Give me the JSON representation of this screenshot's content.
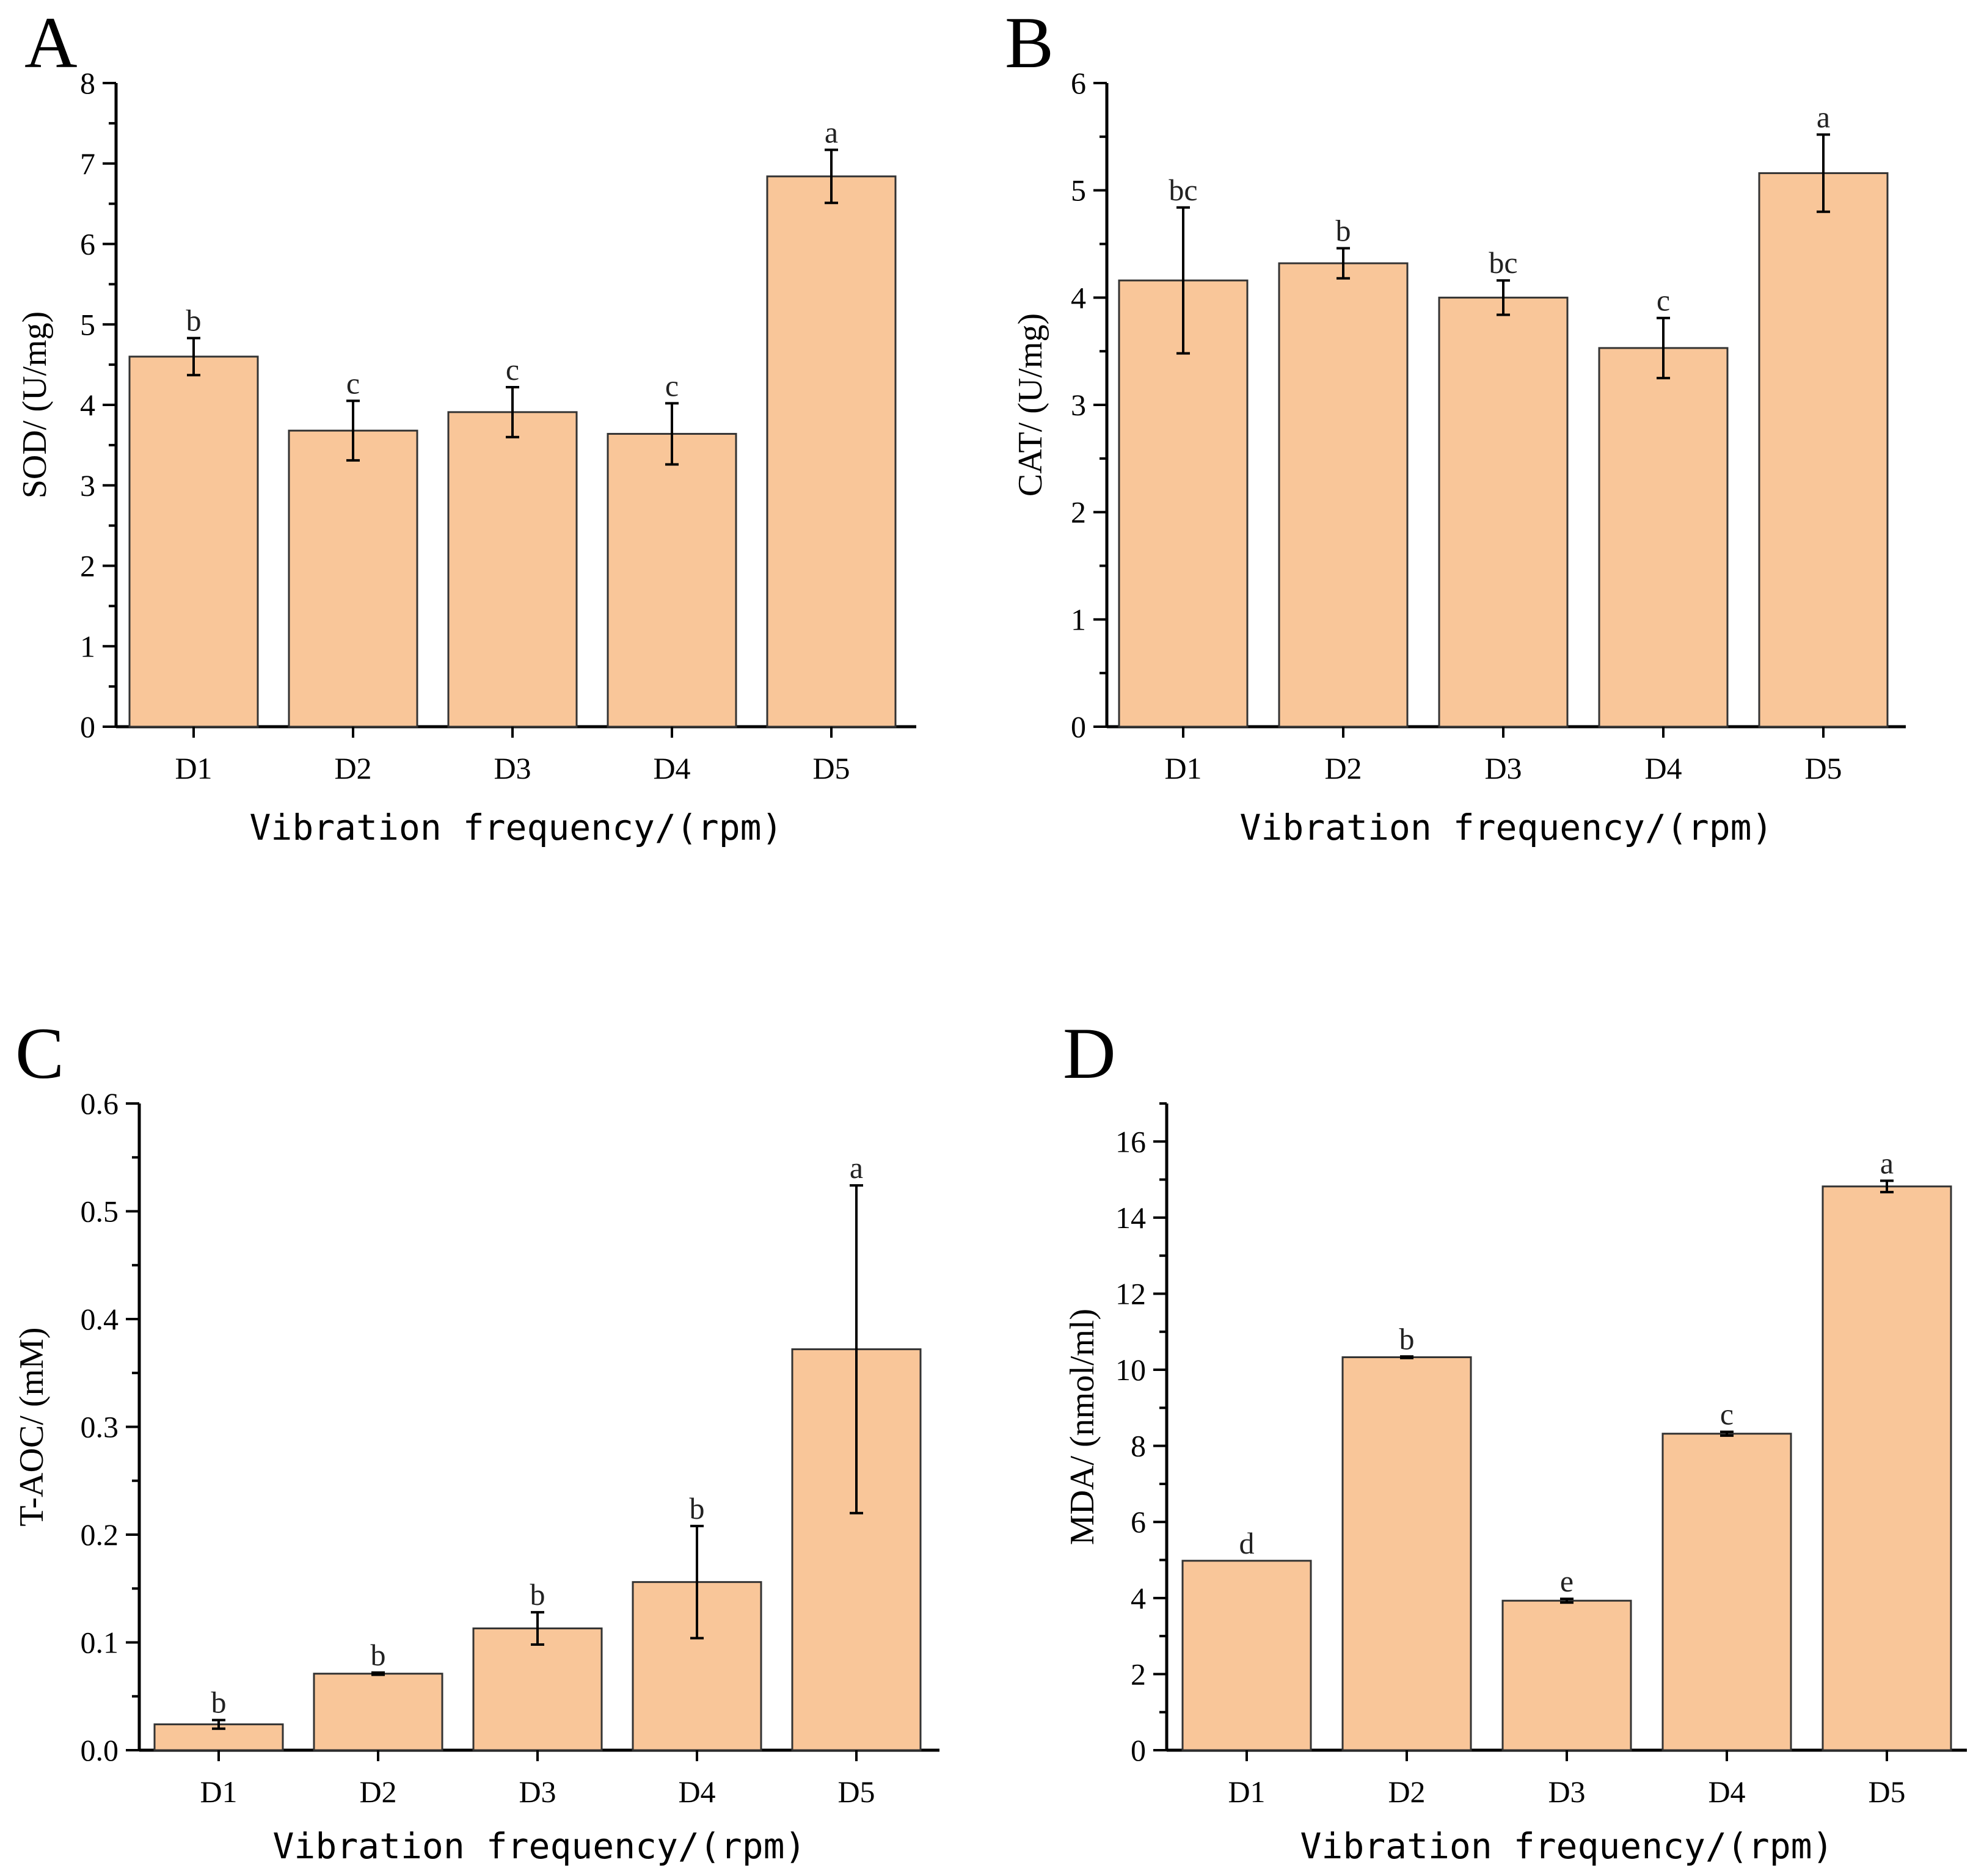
{
  "chart_data": [
    {
      "type": "bar",
      "panel": "A",
      "categories": [
        "D1",
        "D2",
        "D3",
        "D4",
        "D5"
      ],
      "values": [
        4.6,
        3.68,
        3.91,
        3.64,
        6.84
      ],
      "errors": [
        0.23,
        0.37,
        0.31,
        0.38,
        0.33
      ],
      "letters": [
        "b",
        "c",
        "c",
        "c",
        "a"
      ],
      "xlabel": "Vibration frequency/(rpm)",
      "ylabel": "SOD/ (U/mg)",
      "ylim": [
        0,
        8
      ],
      "yticks": [
        0,
        1,
        2,
        3,
        4,
        5,
        6,
        7,
        8
      ],
      "ytick_labels": [
        "0",
        "1",
        "2",
        "3",
        "4",
        "5",
        "6",
        "7",
        "8"
      ]
    },
    {
      "type": "bar",
      "panel": "B",
      "categories": [
        "D1",
        "D2",
        "D3",
        "D4",
        "D5"
      ],
      "values": [
        4.16,
        4.32,
        4.0,
        3.53,
        5.16
      ],
      "errors": [
        0.68,
        0.14,
        0.16,
        0.28,
        0.36
      ],
      "letters": [
        "bc",
        "b",
        "bc",
        "c",
        "a"
      ],
      "xlabel": "Vibration frequency/(rpm)",
      "ylabel": "CAT/ (U/mg)",
      "ylim": [
        0,
        6
      ],
      "yticks": [
        0,
        1,
        2,
        3,
        4,
        5,
        6
      ],
      "ytick_labels": [
        "0",
        "1",
        "2",
        "3",
        "4",
        "5",
        "6"
      ]
    },
    {
      "type": "bar",
      "panel": "C",
      "categories": [
        "D1",
        "D2",
        "D3",
        "D4",
        "D5"
      ],
      "values": [
        0.024,
        0.071,
        0.113,
        0.156,
        0.372
      ],
      "errors": [
        0.004,
        0.001,
        0.015,
        0.052,
        0.152
      ],
      "letters": [
        "b",
        "b",
        "b",
        "b",
        "a"
      ],
      "xlabel": "Vibration frequency/(rpm)",
      "ylabel": "T-AOC/ (mM)",
      "ylim": [
        0,
        0.6
      ],
      "yticks": [
        0,
        0.1,
        0.2,
        0.3,
        0.4,
        0.5,
        0.6
      ],
      "ytick_labels": [
        "0.0",
        "0.1",
        "0.2",
        "0.3",
        "0.4",
        "0.5",
        "0.6"
      ]
    },
    {
      "type": "bar",
      "panel": "D",
      "categories": [
        "D1",
        "D2",
        "D3",
        "D4",
        "D5"
      ],
      "values": [
        4.98,
        10.33,
        3.93,
        8.32,
        14.82
      ],
      "errors": [
        0.0,
        0.02,
        0.05,
        0.05,
        0.15
      ],
      "letters": [
        "d",
        "b",
        "e",
        "c",
        "a"
      ],
      "xlabel": "Vibration frequency/(rpm)",
      "ylabel": "MDA/ (nmol/ml)",
      "ylim": [
        0,
        17
      ],
      "yticks": [
        0,
        2,
        4,
        6,
        8,
        10,
        12,
        14,
        16
      ],
      "ytick_labels": [
        "0",
        "2",
        "4",
        "6",
        "8",
        "10",
        "12",
        "14",
        "16"
      ]
    }
  ]
}
